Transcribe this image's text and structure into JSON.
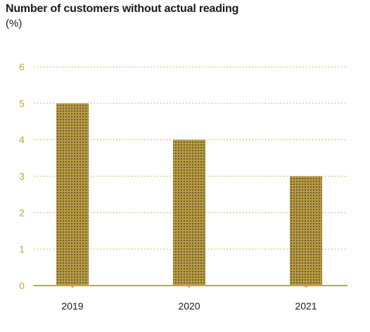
{
  "chart_data": {
    "type": "bar",
    "title": "Number of customers without actual reading",
    "subtitle": "(%)",
    "categories": [
      "2019",
      "2020",
      "2021"
    ],
    "values": [
      5,
      4,
      3
    ],
    "ylim": [
      0,
      6
    ],
    "yticks": [
      "0",
      "1",
      "2",
      "3",
      "4",
      "5",
      "6"
    ],
    "grid": true,
    "colors": {
      "bar_fill": "#b89a45",
      "bar_dots": "#3a2f10",
      "axis": "#c9a43a",
      "tick_label": "#c9a43a",
      "grid": "#c9a43a"
    }
  }
}
